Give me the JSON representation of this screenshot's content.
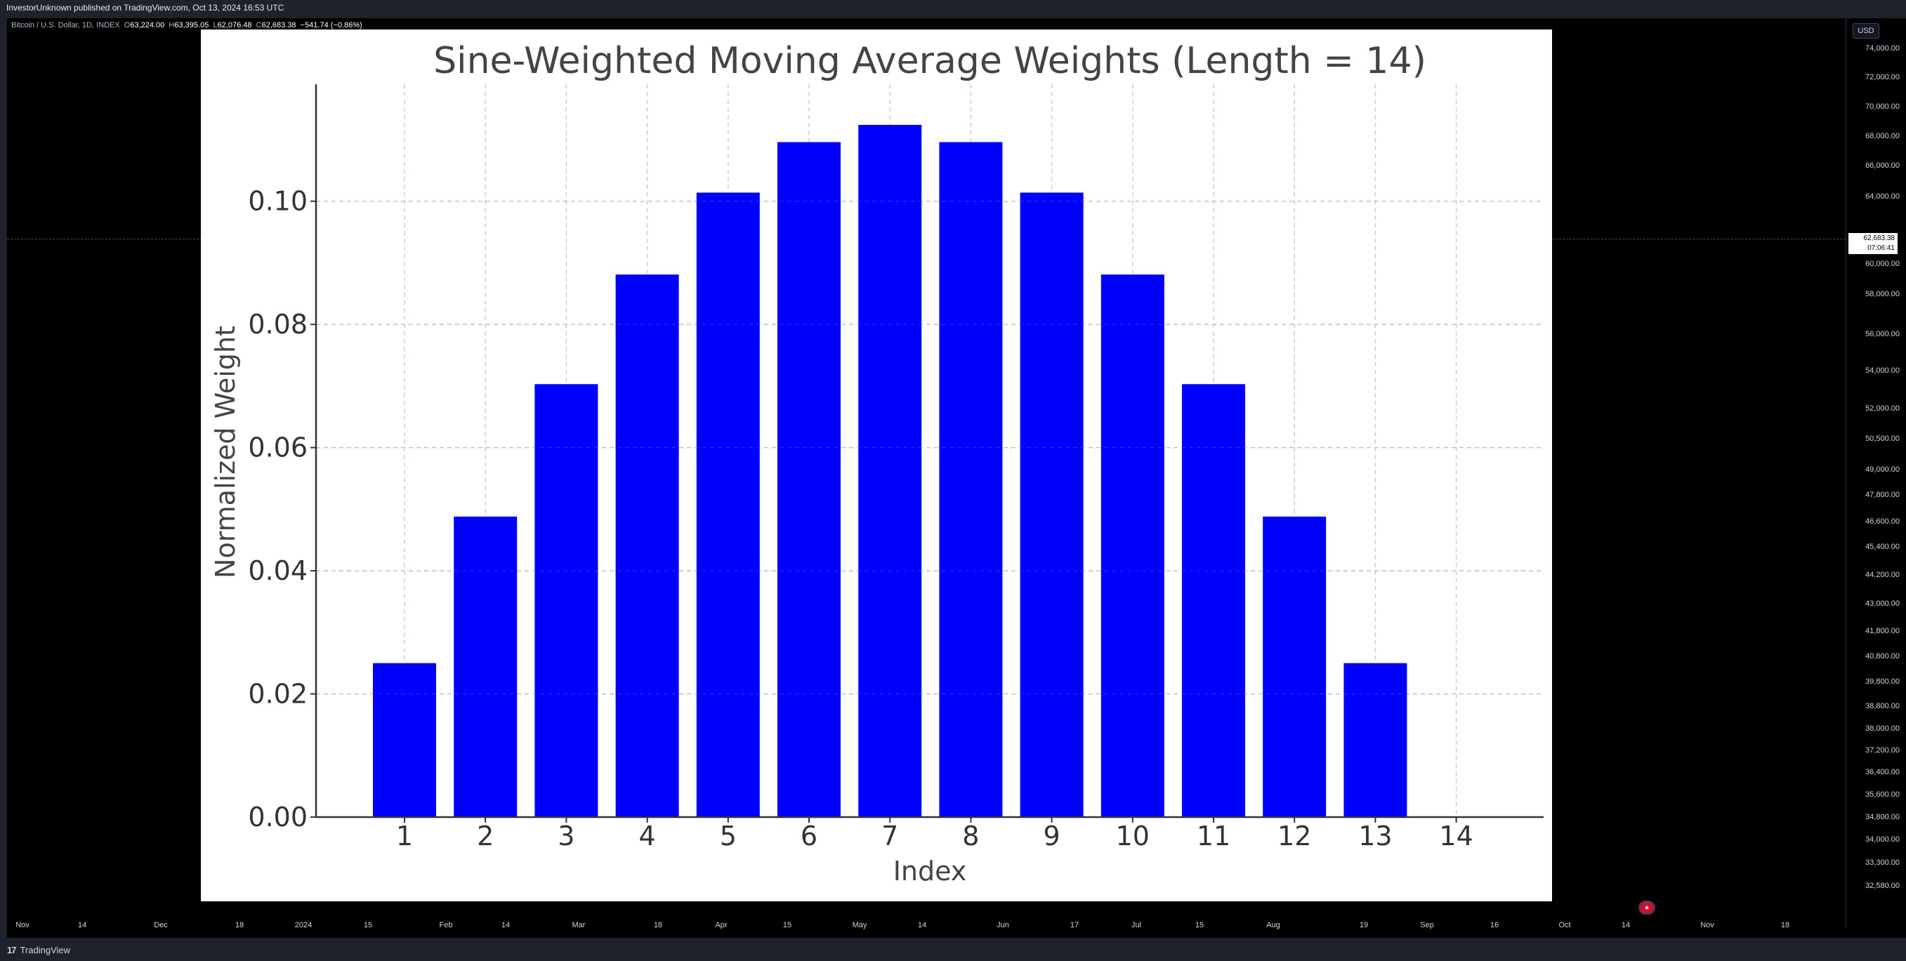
{
  "header": {
    "publisher": "InvestorUnknown published on TradingView.com, Oct 13, 2024 16:53 UTC",
    "symbol": "Bitcoin / U.S. Dollar, 1D, INDEX",
    "open_label": "O",
    "open": "63,224.00",
    "high_label": "H",
    "high": "63,395.05",
    "low_label": "L",
    "low": "62,076.48",
    "close_label": "C",
    "close": "62,683.38",
    "change": "−541.74 (−0.86%)"
  },
  "price_axis": {
    "currency_button": "USD",
    "ticks": [
      "74,000.00",
      "72,000.00",
      "70,000.00",
      "68,000.00",
      "66,000.00",
      "64,000.00",
      "60,000.00",
      "58,000.00",
      "56,000.00",
      "54,000.00",
      "52,000.00",
      "50,500.00",
      "49,000.00",
      "47,800.00",
      "46,600.00",
      "45,400.00",
      "44,200.00",
      "43,000.00",
      "41,800.00",
      "40,800.00",
      "39,800.00",
      "38,800.00",
      "38,000.00",
      "37,200.00",
      "36,400.00",
      "35,600.00",
      "34,800.00",
      "34,000.00",
      "33,300.00",
      "32,580.00"
    ],
    "current_price": "62,683.38",
    "countdown": "07:06:41"
  },
  "time_axis": {
    "ticks": [
      "Nov",
      "14",
      "Dec",
      "18",
      "2024",
      "15",
      "Feb",
      "14",
      "Mar",
      "18",
      "Apr",
      "15",
      "May",
      "14",
      "Jun",
      "17",
      "Jul",
      "15",
      "Aug",
      "19",
      "Sep",
      "16",
      "Oct",
      "14",
      "Nov",
      "18"
    ]
  },
  "footer": {
    "brand": "TradingView",
    "brand_mark": "17"
  },
  "chart_data": {
    "type": "bar",
    "title": "Sine-Weighted Moving Average Weights (Length = 14)",
    "xlabel": "Index",
    "ylabel": "Normalized Weight",
    "categories": [
      "1",
      "2",
      "3",
      "4",
      "5",
      "6",
      "7",
      "8",
      "9",
      "10",
      "11",
      "12",
      "13",
      "14"
    ],
    "values": [
      0.025,
      0.0488,
      0.0703,
      0.0881,
      0.1014,
      0.1096,
      0.1124,
      0.1096,
      0.1014,
      0.0881,
      0.0703,
      0.0488,
      0.025,
      0.0
    ],
    "ylim": [
      0,
      0.119
    ],
    "yticks": [
      "0.00",
      "0.02",
      "0.04",
      "0.06",
      "0.08",
      "0.10"
    ],
    "ytick_values": [
      0,
      0.02,
      0.04,
      0.06,
      0.08,
      0.1
    ],
    "bar_color": "#0000ff",
    "grid": true
  }
}
